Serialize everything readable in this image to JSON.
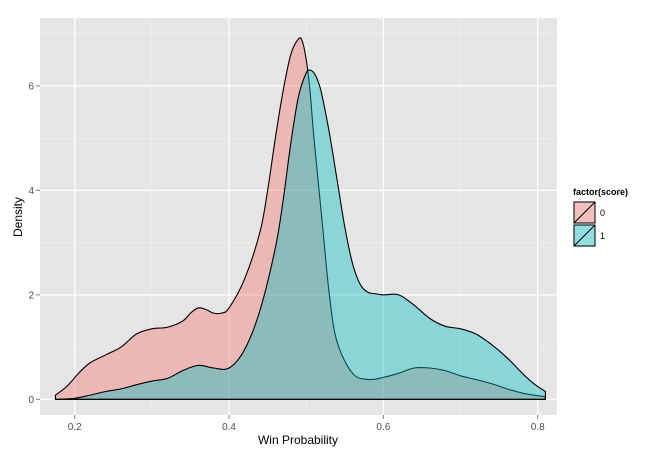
{
  "chart_data": {
    "type": "area",
    "title": "",
    "xlabel": "Win Probability",
    "ylabel": "Density",
    "xlim": [
      0.155,
      0.825
    ],
    "ylim": [
      -0.3,
      7.3
    ],
    "xticks": [
      0.2,
      0.4,
      0.6,
      0.8
    ],
    "xtick_labels": [
      "0.2",
      "0.4",
      "0.6",
      "0.8"
    ],
    "yticks": [
      0,
      2,
      4,
      6
    ],
    "ytick_labels": [
      "0",
      "2",
      "4",
      "6"
    ],
    "grid": true,
    "legend": {
      "title": "factor(score)",
      "position": "right",
      "entries": [
        "0",
        "1"
      ]
    },
    "series": [
      {
        "name": "0",
        "color": "#F8766D",
        "x": [
          0.175,
          0.19,
          0.205,
          0.22,
          0.24,
          0.26,
          0.28,
          0.3,
          0.32,
          0.34,
          0.35,
          0.36,
          0.37,
          0.38,
          0.39,
          0.4,
          0.42,
          0.44,
          0.45,
          0.46,
          0.47,
          0.48,
          0.49,
          0.495,
          0.5,
          0.505,
          0.51,
          0.52,
          0.53,
          0.54,
          0.56,
          0.58,
          0.6,
          0.62,
          0.64,
          0.66,
          0.68,
          0.7,
          0.72,
          0.74,
          0.76,
          0.78,
          0.795,
          0.81
        ],
        "y": [
          0.08,
          0.25,
          0.5,
          0.7,
          0.85,
          1.0,
          1.25,
          1.35,
          1.38,
          1.5,
          1.65,
          1.75,
          1.72,
          1.65,
          1.65,
          1.75,
          2.3,
          3.2,
          4.0,
          5.0,
          5.9,
          6.6,
          6.9,
          6.85,
          6.5,
          5.9,
          5.0,
          3.5,
          2.0,
          1.1,
          0.5,
          0.38,
          0.42,
          0.5,
          0.6,
          0.6,
          0.55,
          0.45,
          0.38,
          0.3,
          0.2,
          0.12,
          0.08,
          0.05
        ]
      },
      {
        "name": "1",
        "color": "#00BFC4",
        "x": [
          0.175,
          0.2,
          0.22,
          0.24,
          0.26,
          0.28,
          0.3,
          0.32,
          0.34,
          0.36,
          0.38,
          0.4,
          0.42,
          0.44,
          0.46,
          0.47,
          0.48,
          0.49,
          0.5,
          0.505,
          0.51,
          0.515,
          0.52,
          0.53,
          0.54,
          0.55,
          0.56,
          0.57,
          0.58,
          0.59,
          0.6,
          0.62,
          0.64,
          0.66,
          0.68,
          0.7,
          0.72,
          0.74,
          0.76,
          0.78,
          0.795,
          0.81
        ],
        "y": [
          0.0,
          0.02,
          0.08,
          0.15,
          0.2,
          0.28,
          0.35,
          0.4,
          0.55,
          0.65,
          0.6,
          0.6,
          0.95,
          1.7,
          2.9,
          3.8,
          4.9,
          5.8,
          6.25,
          6.3,
          6.25,
          6.1,
          5.85,
          5.1,
          4.2,
          3.3,
          2.6,
          2.2,
          2.05,
          2.02,
          2.0,
          2.0,
          1.8,
          1.55,
          1.4,
          1.35,
          1.25,
          1.05,
          0.8,
          0.5,
          0.3,
          0.15
        ]
      }
    ]
  }
}
